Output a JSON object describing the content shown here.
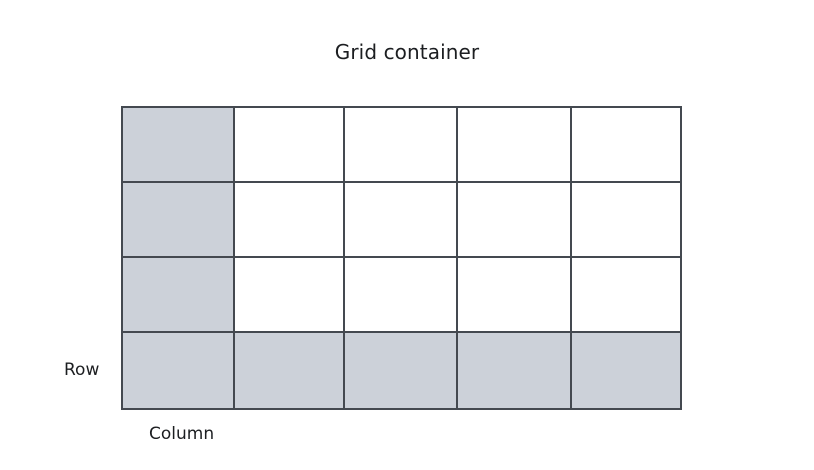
{
  "diagram": {
    "title": "Grid container",
    "row_label": "Row",
    "column_label": "Column",
    "rows": 4,
    "columns": 5,
    "highlighted_column_index": 0,
    "highlighted_row_index": 3,
    "colors": {
      "highlight_fill": "#ccd1d9",
      "cell_fill": "#ffffff",
      "grid_line": "#444950"
    }
  }
}
